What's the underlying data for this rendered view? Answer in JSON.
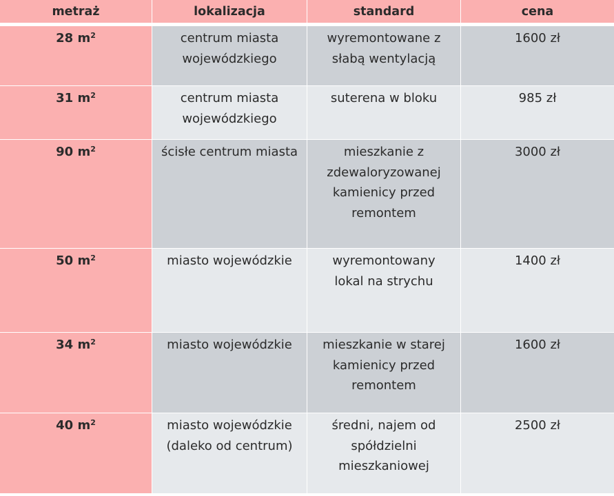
{
  "headers": [
    "metraż",
    "lokalizacja",
    "standard",
    "cena"
  ],
  "area_unit": "m",
  "area_exp": "2",
  "rows": [
    {
      "area": "28",
      "location": [
        "centrum miasta",
        "wojewódzkiego"
      ],
      "standard": [
        "wyremontowane z",
        "słabą wentylacją"
      ],
      "price": "1600 zł"
    },
    {
      "area": "31",
      "location": [
        "centrum miasta",
        "wojewódzkiego"
      ],
      "standard": [
        "suterena w bloku"
      ],
      "price": "985 zł"
    },
    {
      "area": "90",
      "location": [
        "ścisłe centrum miasta"
      ],
      "standard": [
        "mieszkanie z",
        "zdewaloryzowanej",
        "kamienicy przed",
        "remontem"
      ],
      "price": "3000 zł"
    },
    {
      "area": "50",
      "location": [
        "miasto wojewódzkie"
      ],
      "standard": [
        "wyremontowany",
        "lokal na strychu"
      ],
      "price": "1400 zł"
    },
    {
      "area": "34",
      "location": [
        "miasto wojewódzkie"
      ],
      "standard": [
        "mieszkanie w starej",
        "kamienicy przed",
        "remontem"
      ],
      "price": "1600 zł"
    },
    {
      "area": "40",
      "location": [
        "miasto wojewódzkie",
        "(daleko od centrum)"
      ],
      "standard": [
        "średni, najem od",
        "spółdzielni",
        "mieszkaniowej"
      ],
      "price": "2500 zł"
    }
  ]
}
